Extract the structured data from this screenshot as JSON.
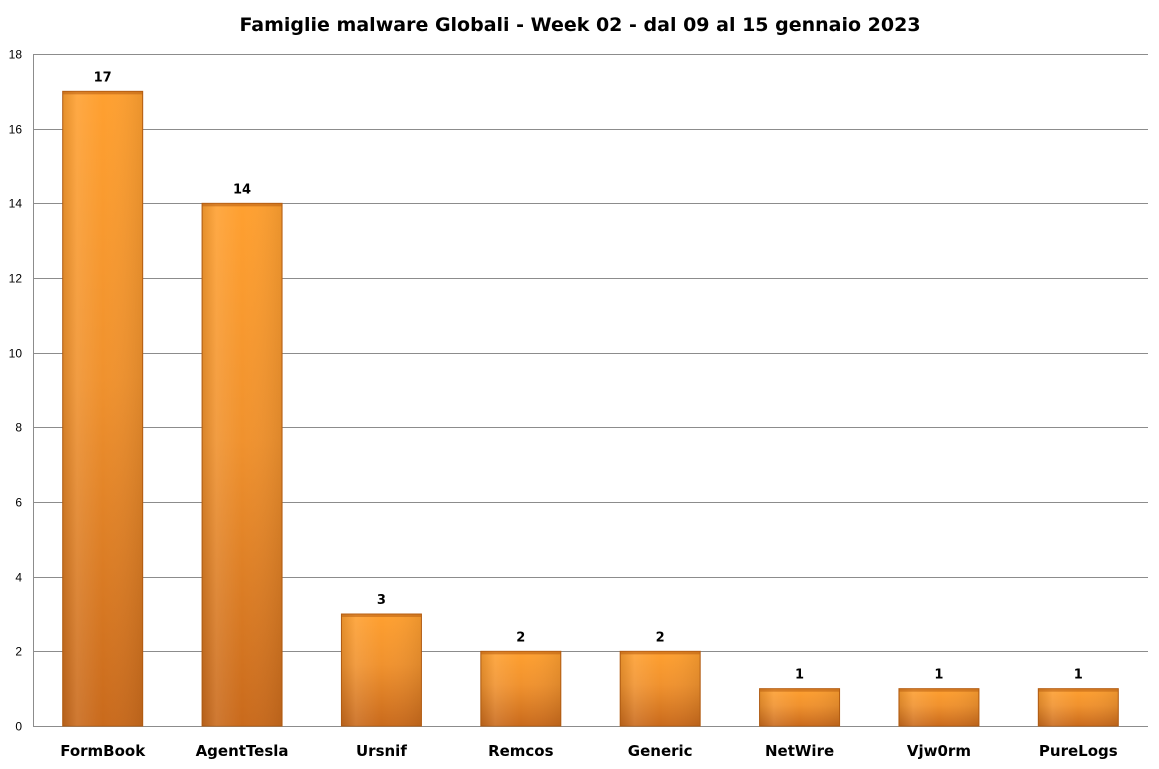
{
  "chart_data": {
    "type": "bar",
    "title": "Famiglie malware Globali - Week 02 - dal 09 al 15 gennaio 2023",
    "xlabel": "",
    "ylabel": "",
    "categories": [
      "FormBook",
      "AgentTesla",
      "Ursnif",
      "Remcos",
      "Generic",
      "NetWire",
      "Vjw0rm",
      "PureLogs"
    ],
    "values": [
      17,
      14,
      3,
      2,
      2,
      1,
      1,
      1
    ],
    "ylim": [
      0,
      18
    ],
    "yticks": [
      0,
      2,
      4,
      6,
      8,
      10,
      12,
      14,
      16,
      18
    ],
    "grid": true,
    "legend": "none",
    "data_labels": true
  },
  "colors": {
    "bar_light": "#ffa030",
    "bar_mid": "#f0922e",
    "bar_dark": "#c96a1c",
    "bar_edge": "#b85f12",
    "gridline": "#8c8c8c"
  }
}
